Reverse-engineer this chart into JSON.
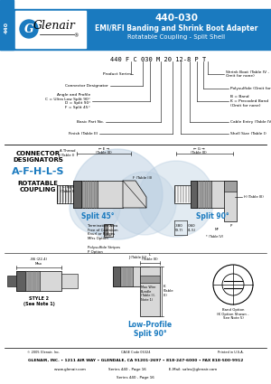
{
  "header_bg": "#1a7abf",
  "header_text_color": "#ffffff",
  "body_bg": "#ffffff",
  "blue_accent": "#1a7abf",
  "series_num": "440",
  "part_number": "440-030",
  "title_line1": "EMI/RFI Banding and Shrink Boot Adapter",
  "title_line2": "Rotatable Coupling - Split Shell",
  "logo_text": "Glenair",
  "designators": "A-F-H-L-S",
  "part_breakdown": "440 F C 030 M 20 12-8 P T",
  "split45_label": "Split 45°",
  "split90_label": "Split 90°",
  "lowprofile_label": "Low-Profile\nSplit 90°",
  "style2_label": "STYLE 2\n(See Note 1)",
  "band_option_label": "Band Option\n(K Option Shown -\nSee Note 5)",
  "footer_line1": "© 2005 Glenair, Inc.          CAGE Code 06324          Printed in U.S.A.",
  "footer_line2": "GLENAIR, INC. • 1211 AIR WAY • GLENDALE, CA 91201-2697 • 818-247-6000 • FAX 818-500-9912",
  "footer_line3": "www.glenair.com                    Series 440 - Page 16                    E-Mail: sales@glenair.com",
  "watermark_color": "#b8cde0",
  "component_fill": "#d8d8d8",
  "component_mid": "#a0a0a0",
  "component_dark": "#606060"
}
